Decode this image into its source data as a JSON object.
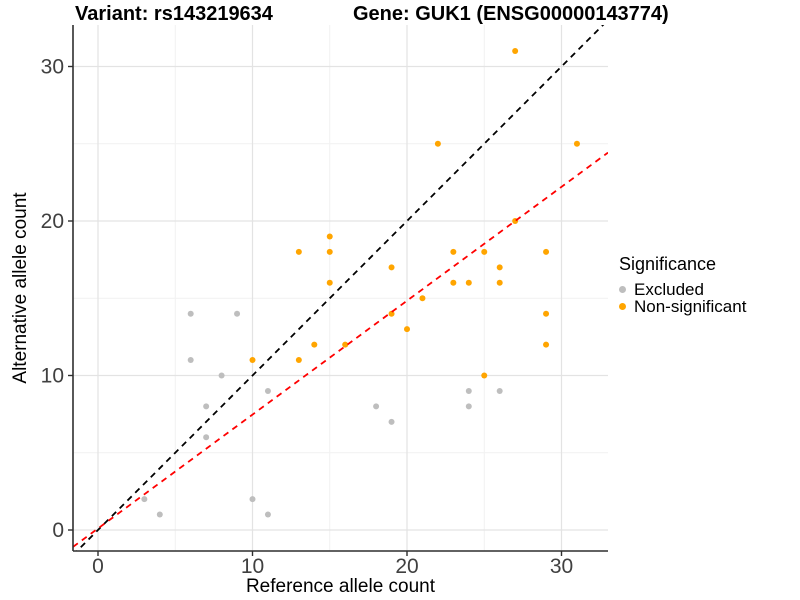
{
  "titles": {
    "left": "Variant: rs143219634",
    "right": "Gene: GUK1 (ENSG00000143774)"
  },
  "chart_data": {
    "type": "scatter",
    "title": "Variant: rs143219634   Gene: GUK1 (ENSG00000143774)",
    "xlabel": "Reference allele count",
    "ylabel": "Alternative allele count",
    "xlim": [
      -1.6,
      33.0
    ],
    "ylim": [
      -1.4,
      32.7
    ],
    "xticks": [
      0,
      10,
      20,
      30
    ],
    "yticks": [
      0,
      10,
      20,
      30
    ],
    "minor_xticks": [
      5,
      15,
      25
    ],
    "minor_yticks": [
      5,
      15,
      25
    ],
    "grid": "major+minor",
    "legend": {
      "title": "Significance",
      "position": "right",
      "items": [
        {
          "label": "Excluded",
          "color": "#BEBEBE"
        },
        {
          "label": "Non-significant",
          "color": "#FFA500"
        }
      ]
    },
    "series": [
      {
        "name": "Excluded",
        "color": "#BEBEBE",
        "points": [
          [
            3,
            2
          ],
          [
            4,
            1
          ],
          [
            6,
            11
          ],
          [
            6,
            14
          ],
          [
            7,
            6
          ],
          [
            7,
            8
          ],
          [
            8,
            10
          ],
          [
            9,
            14
          ],
          [
            10,
            2
          ],
          [
            11,
            1
          ],
          [
            11,
            9
          ],
          [
            18,
            8
          ],
          [
            19,
            7
          ],
          [
            24,
            8
          ],
          [
            24,
            9
          ],
          [
            26,
            9
          ]
        ]
      },
      {
        "name": "Non-significant",
        "color": "#FFA500",
        "points": [
          [
            10,
            11
          ],
          [
            13,
            11
          ],
          [
            13,
            18
          ],
          [
            14,
            12
          ],
          [
            15,
            16
          ],
          [
            15,
            18
          ],
          [
            15,
            19
          ],
          [
            16,
            12
          ],
          [
            19,
            14
          ],
          [
            19,
            17
          ],
          [
            20,
            13
          ],
          [
            21,
            15
          ],
          [
            22,
            25
          ],
          [
            23,
            16
          ],
          [
            23,
            18
          ],
          [
            24,
            16
          ],
          [
            25,
            10
          ],
          [
            25,
            18
          ],
          [
            26,
            16
          ],
          [
            26,
            17
          ],
          [
            27,
            20
          ],
          [
            27,
            31
          ],
          [
            29,
            12
          ],
          [
            29,
            14
          ],
          [
            29,
            18
          ],
          [
            31,
            25
          ]
        ]
      }
    ],
    "lines": [
      {
        "name": "identity-line",
        "color": "#000000",
        "dashed": true,
        "slope": 1.0,
        "intercept": 0.0
      },
      {
        "name": "fit-line",
        "color": "#FF0000",
        "dashed": true,
        "slope": 0.737,
        "intercept": 0.1
      }
    ],
    "colors": {
      "background": "#FFFFFF",
      "major_grid": "#E3E3E3",
      "minor_grid": "#F1F1F1",
      "axis_line": "#2F2F2F",
      "tick_text": "#404040"
    }
  }
}
